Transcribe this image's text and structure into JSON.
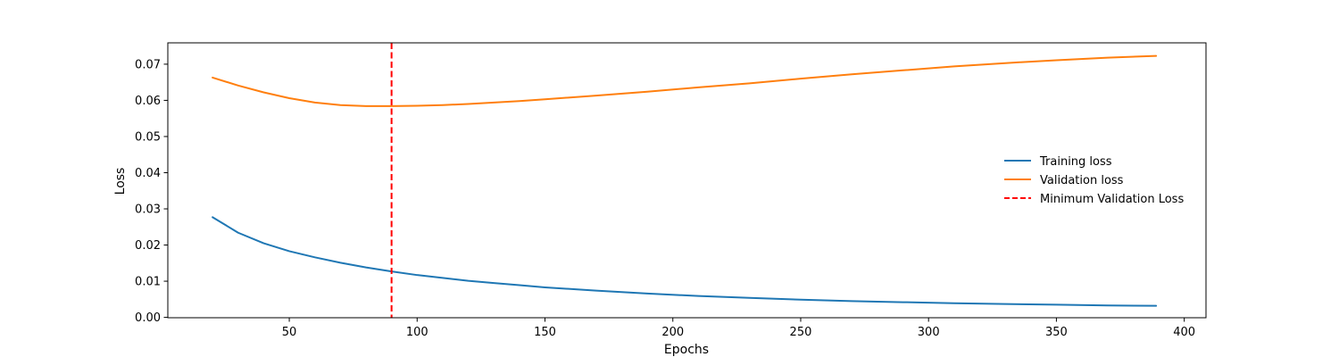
{
  "chart_data": {
    "type": "line",
    "title": "",
    "xlabel": "Epochs",
    "ylabel": "Loss",
    "xlim": [
      2.5,
      408.5
    ],
    "ylim": [
      -0.0001,
      0.0759
    ],
    "xticks": [
      50,
      100,
      150,
      200,
      250,
      300,
      350,
      400
    ],
    "yticks": [
      0.0,
      0.01,
      0.02,
      0.03,
      0.04,
      0.05,
      0.06,
      0.07
    ],
    "ytick_labels": [
      "0.00",
      "0.01",
      "0.02",
      "0.03",
      "0.04",
      "0.05",
      "0.06",
      "0.07"
    ],
    "grid": false,
    "legend_position": "center-right",
    "x": [
      20,
      30,
      40,
      50,
      60,
      70,
      80,
      90,
      100,
      110,
      120,
      130,
      140,
      150,
      170,
      190,
      210,
      230,
      250,
      270,
      290,
      310,
      330,
      350,
      370,
      389
    ],
    "series": [
      {
        "name": "Training loss",
        "color": "#1f77b4",
        "values": [
          0.0277,
          0.0234,
          0.0205,
          0.0183,
          0.0166,
          0.0151,
          0.0138,
          0.0127,
          0.0117,
          0.0109,
          0.0101,
          0.0095,
          0.0089,
          0.0083,
          0.0074,
          0.0066,
          0.0059,
          0.0054,
          0.0049,
          0.0045,
          0.0042,
          0.0039,
          0.0037,
          0.0035,
          0.0033,
          0.0032
        ]
      },
      {
        "name": "Validation loss",
        "color": "#ff7f0e",
        "values": [
          0.0663,
          0.0641,
          0.0622,
          0.0606,
          0.0594,
          0.0587,
          0.0584,
          0.0584,
          0.0585,
          0.0587,
          0.059,
          0.0594,
          0.0598,
          0.0603,
          0.0613,
          0.0624,
          0.0636,
          0.0647,
          0.066,
          0.0672,
          0.0683,
          0.0694,
          0.0703,
          0.0711,
          0.0718,
          0.0723
        ]
      }
    ],
    "vlines": [
      {
        "name": "Minimum Validation Loss",
        "x": 90,
        "color": "#ff0000",
        "style": "dashed"
      }
    ]
  }
}
